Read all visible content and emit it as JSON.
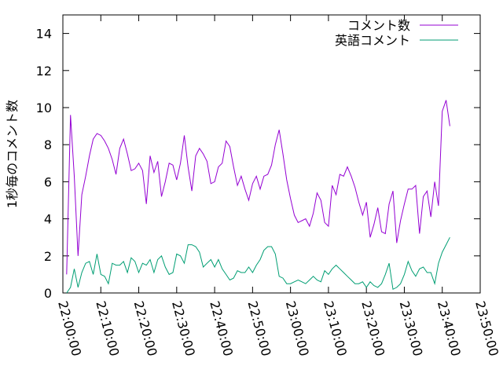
{
  "chart_data": {
    "type": "line",
    "ylabel": "1秒毎のコメント数",
    "xlabel": "",
    "title": "",
    "xlim": [
      "22:00:00",
      "23:50:00"
    ],
    "ylim": [
      0,
      15
    ],
    "grid": false,
    "legend_position": "top-right",
    "x_ticks": [
      "22:00:00",
      "22:10:00",
      "22:20:00",
      "22:30:00",
      "22:40:00",
      "22:50:00",
      "23:00:00",
      "23:10:00",
      "23:20:00",
      "23:30:00",
      "23:40:00",
      "23:50:00"
    ],
    "y_ticks": [
      "0",
      "2",
      "4",
      "6",
      "8",
      "10",
      "12",
      "14"
    ],
    "series": [
      {
        "name": "コメント数",
        "color": "#9400d3",
        "points": [
          [
            "22:01:00",
            1.0
          ],
          [
            "22:02:00",
            9.6
          ],
          [
            "22:03:00",
            6.3
          ],
          [
            "22:04:00",
            2.0
          ],
          [
            "22:05:00",
            5.3
          ],
          [
            "22:06:00",
            6.3
          ],
          [
            "22:07:00",
            7.4
          ],
          [
            "22:08:00",
            8.3
          ],
          [
            "22:09:00",
            8.6
          ],
          [
            "22:10:00",
            8.5
          ],
          [
            "22:11:00",
            8.2
          ],
          [
            "22:12:00",
            7.8
          ],
          [
            "22:13:00",
            7.2
          ],
          [
            "22:14:00",
            6.4
          ],
          [
            "22:15:00",
            7.8
          ],
          [
            "22:16:00",
            8.3
          ],
          [
            "22:17:00",
            7.5
          ],
          [
            "22:18:00",
            6.6
          ],
          [
            "22:19:00",
            6.7
          ],
          [
            "22:20:00",
            7.0
          ],
          [
            "22:21:00",
            6.6
          ],
          [
            "22:22:00",
            4.8
          ],
          [
            "22:23:00",
            7.4
          ],
          [
            "22:24:00",
            6.5
          ],
          [
            "22:25:00",
            7.1
          ],
          [
            "22:26:00",
            5.2
          ],
          [
            "22:27:00",
            6.0
          ],
          [
            "22:28:00",
            7.0
          ],
          [
            "22:29:00",
            6.9
          ],
          [
            "22:30:00",
            6.1
          ],
          [
            "22:31:00",
            7.0
          ],
          [
            "22:32:00",
            8.5
          ],
          [
            "22:33:00",
            6.8
          ],
          [
            "22:34:00",
            5.5
          ],
          [
            "22:35:00",
            7.4
          ],
          [
            "22:36:00",
            7.8
          ],
          [
            "22:37:00",
            7.5
          ],
          [
            "22:38:00",
            7.1
          ],
          [
            "22:39:00",
            5.9
          ],
          [
            "22:40:00",
            6.0
          ],
          [
            "22:41:00",
            6.8
          ],
          [
            "22:42:00",
            7.0
          ],
          [
            "22:43:00",
            8.2
          ],
          [
            "22:44:00",
            7.9
          ],
          [
            "22:45:00",
            6.8
          ],
          [
            "22:46:00",
            5.8
          ],
          [
            "22:47:00",
            6.3
          ],
          [
            "22:48:00",
            5.6
          ],
          [
            "22:49:00",
            5.0
          ],
          [
            "22:50:00",
            5.9
          ],
          [
            "22:51:00",
            6.3
          ],
          [
            "22:52:00",
            5.6
          ],
          [
            "22:53:00",
            6.3
          ],
          [
            "22:54:00",
            6.4
          ],
          [
            "22:55:00",
            6.9
          ],
          [
            "22:56:00",
            8.0
          ],
          [
            "22:57:00",
            8.8
          ],
          [
            "22:58:00",
            7.5
          ],
          [
            "22:59:00",
            6.1
          ],
          [
            "23:00:00",
            5.1
          ],
          [
            "23:01:00",
            4.2
          ],
          [
            "23:02:00",
            3.8
          ],
          [
            "23:03:00",
            3.9
          ],
          [
            "23:04:00",
            4.0
          ],
          [
            "23:05:00",
            3.6
          ],
          [
            "23:06:00",
            4.3
          ],
          [
            "23:07:00",
            5.4
          ],
          [
            "23:08:00",
            5.0
          ],
          [
            "23:09:00",
            3.8
          ],
          [
            "23:10:00",
            3.6
          ],
          [
            "23:11:00",
            5.8
          ],
          [
            "23:12:00",
            5.3
          ],
          [
            "23:13:00",
            6.4
          ],
          [
            "23:14:00",
            6.3
          ],
          [
            "23:15:00",
            6.8
          ],
          [
            "23:16:00",
            6.3
          ],
          [
            "23:17:00",
            5.7
          ],
          [
            "23:18:00",
            4.9
          ],
          [
            "23:19:00",
            4.2
          ],
          [
            "23:20:00",
            4.9
          ],
          [
            "23:21:00",
            3.0
          ],
          [
            "23:22:00",
            3.7
          ],
          [
            "23:23:00",
            4.6
          ],
          [
            "23:24:00",
            3.3
          ],
          [
            "23:25:00",
            3.2
          ],
          [
            "23:26:00",
            4.8
          ],
          [
            "23:27:00",
            5.5
          ],
          [
            "23:28:00",
            2.7
          ],
          [
            "23:29:00",
            3.9
          ],
          [
            "23:30:00",
            4.8
          ],
          [
            "23:31:00",
            5.6
          ],
          [
            "23:32:00",
            5.6
          ],
          [
            "23:33:00",
            5.8
          ],
          [
            "23:34:00",
            3.2
          ],
          [
            "23:35:00",
            5.2
          ],
          [
            "23:36:00",
            5.5
          ],
          [
            "23:37:00",
            4.1
          ],
          [
            "23:38:00",
            6.0
          ],
          [
            "23:39:00",
            4.7
          ],
          [
            "23:40:00",
            9.8
          ],
          [
            "23:41:00",
            10.4
          ],
          [
            "23:42:00",
            9.0
          ]
        ]
      },
      {
        "name": "英語コメント",
        "color": "#009e73",
        "points": [
          [
            "22:01:00",
            0.0
          ],
          [
            "22:02:00",
            0.3
          ],
          [
            "22:03:00",
            1.3
          ],
          [
            "22:04:00",
            0.3
          ],
          [
            "22:05:00",
            1.1
          ],
          [
            "22:06:00",
            1.6
          ],
          [
            "22:07:00",
            1.7
          ],
          [
            "22:08:00",
            1.0
          ],
          [
            "22:09:00",
            2.1
          ],
          [
            "22:10:00",
            1.0
          ],
          [
            "22:11:00",
            0.9
          ],
          [
            "22:12:00",
            0.5
          ],
          [
            "22:13:00",
            1.6
          ],
          [
            "22:14:00",
            1.5
          ],
          [
            "22:15:00",
            1.5
          ],
          [
            "22:16:00",
            1.7
          ],
          [
            "22:17:00",
            1.1
          ],
          [
            "22:18:00",
            1.9
          ],
          [
            "22:19:00",
            1.7
          ],
          [
            "22:20:00",
            1.1
          ],
          [
            "22:21:00",
            1.6
          ],
          [
            "22:22:00",
            1.5
          ],
          [
            "22:23:00",
            1.8
          ],
          [
            "22:24:00",
            1.1
          ],
          [
            "22:25:00",
            1.8
          ],
          [
            "22:26:00",
            2.0
          ],
          [
            "22:27:00",
            1.4
          ],
          [
            "22:28:00",
            1.0
          ],
          [
            "22:29:00",
            1.1
          ],
          [
            "22:30:00",
            2.1
          ],
          [
            "22:31:00",
            2.0
          ],
          [
            "22:32:00",
            1.6
          ],
          [
            "22:33:00",
            2.6
          ],
          [
            "22:34:00",
            2.6
          ],
          [
            "22:35:00",
            2.5
          ],
          [
            "22:36:00",
            2.2
          ],
          [
            "22:37:00",
            1.4
          ],
          [
            "22:38:00",
            1.6
          ],
          [
            "22:39:00",
            1.8
          ],
          [
            "22:40:00",
            1.4
          ],
          [
            "22:41:00",
            1.8
          ],
          [
            "22:42:00",
            1.3
          ],
          [
            "22:43:00",
            1.0
          ],
          [
            "22:44:00",
            0.7
          ],
          [
            "22:45:00",
            0.8
          ],
          [
            "22:46:00",
            1.2
          ],
          [
            "22:47:00",
            1.1
          ],
          [
            "22:48:00",
            1.1
          ],
          [
            "22:49:00",
            1.4
          ],
          [
            "22:50:00",
            1.1
          ],
          [
            "22:51:00",
            1.5
          ],
          [
            "22:52:00",
            1.8
          ],
          [
            "22:53:00",
            2.3
          ],
          [
            "22:54:00",
            2.5
          ],
          [
            "22:55:00",
            2.5
          ],
          [
            "22:56:00",
            2.1
          ],
          [
            "22:57:00",
            0.9
          ],
          [
            "22:58:00",
            0.8
          ],
          [
            "22:59:00",
            0.5
          ],
          [
            "23:00:00",
            0.5
          ],
          [
            "23:01:00",
            0.6
          ],
          [
            "23:02:00",
            0.7
          ],
          [
            "23:03:00",
            0.6
          ],
          [
            "23:04:00",
            0.5
          ],
          [
            "23:05:00",
            0.7
          ],
          [
            "23:06:00",
            0.9
          ],
          [
            "23:07:00",
            0.7
          ],
          [
            "23:08:00",
            0.6
          ],
          [
            "23:09:00",
            1.2
          ],
          [
            "23:10:00",
            1.0
          ],
          [
            "23:11:00",
            1.3
          ],
          [
            "23:12:00",
            1.5
          ],
          [
            "23:13:00",
            1.3
          ],
          [
            "23:14:00",
            1.1
          ],
          [
            "23:15:00",
            0.9
          ],
          [
            "23:16:00",
            0.7
          ],
          [
            "23:17:00",
            0.5
          ],
          [
            "23:18:00",
            0.5
          ],
          [
            "23:19:00",
            0.6
          ],
          [
            "23:20:00",
            0.3
          ],
          [
            "23:21:00",
            0.6
          ],
          [
            "23:22:00",
            0.4
          ],
          [
            "23:23:00",
            0.3
          ],
          [
            "23:24:00",
            0.5
          ],
          [
            "23:25:00",
            1.0
          ],
          [
            "23:26:00",
            1.6
          ],
          [
            "23:27:00",
            0.2
          ],
          [
            "23:28:00",
            0.3
          ],
          [
            "23:29:00",
            0.5
          ],
          [
            "23:30:00",
            1.0
          ],
          [
            "23:31:00",
            1.7
          ],
          [
            "23:32:00",
            1.2
          ],
          [
            "23:33:00",
            0.9
          ],
          [
            "23:34:00",
            1.3
          ],
          [
            "23:35:00",
            1.4
          ],
          [
            "23:36:00",
            1.1
          ],
          [
            "23:37:00",
            1.1
          ],
          [
            "23:38:00",
            0.5
          ],
          [
            "23:39:00",
            1.6
          ],
          [
            "23:40:00",
            2.2
          ],
          [
            "23:41:00",
            2.6
          ],
          [
            "23:42:00",
            3.0
          ]
        ]
      }
    ]
  }
}
